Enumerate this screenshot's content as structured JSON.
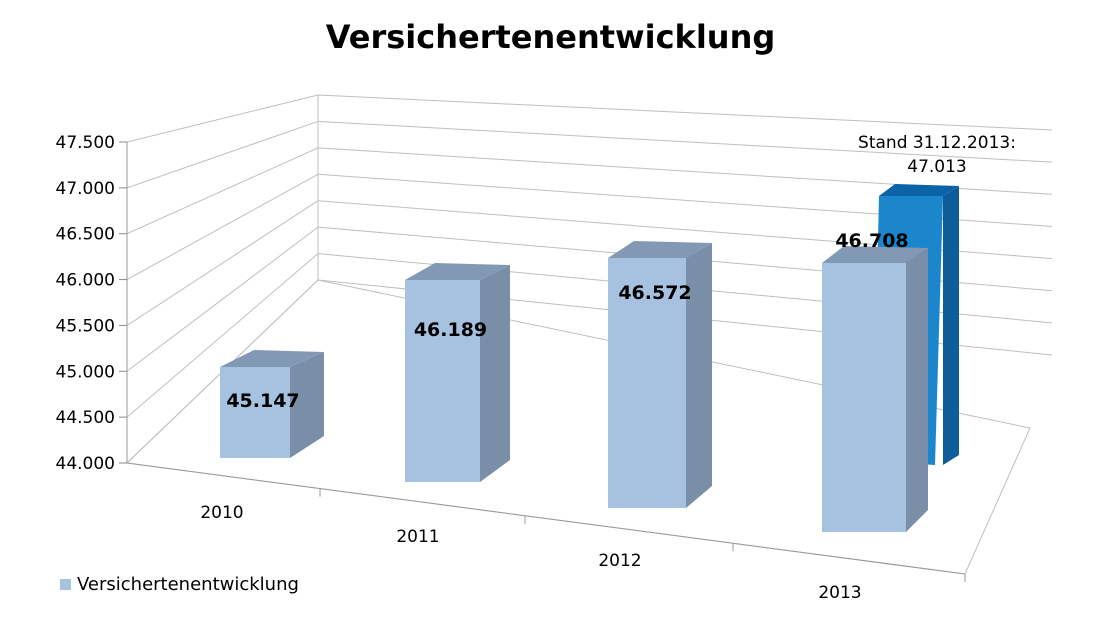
{
  "chart_data": {
    "type": "bar",
    "title": "Versichertenentwicklung",
    "categories": [
      "2010",
      "2011",
      "2012",
      "2013"
    ],
    "series": [
      {
        "name": "Versichertenentwicklung",
        "values": [
          45147,
          46189,
          46572,
          46708
        ],
        "labels": [
          "45.147",
          "46.189",
          "46.572",
          "46.708"
        ],
        "color": "#a7c1e0"
      }
    ],
    "extra_bar": {
      "value": 47013,
      "label": "Stand 31.12.2013:",
      "value_label": "47.013",
      "color": "#1b86cc"
    },
    "ylim": [
      44000,
      47500
    ],
    "y_ticks": [
      "44.000",
      "44.500",
      "45.000",
      "45.500",
      "46.000",
      "46.500",
      "47.000",
      "47.500"
    ],
    "grid": true,
    "legend_position": "bottom-left"
  }
}
